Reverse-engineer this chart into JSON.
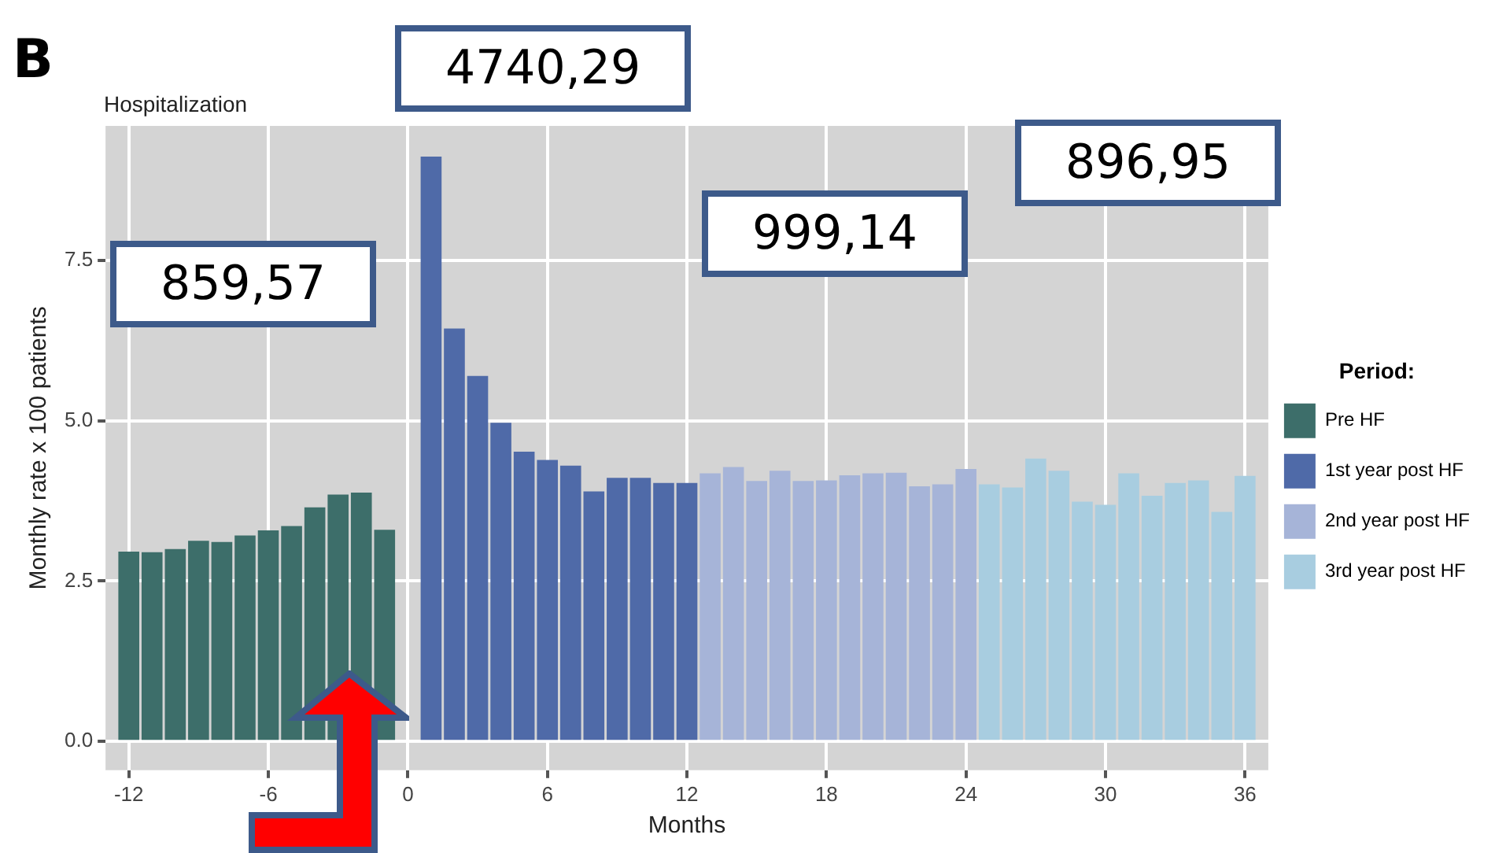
{
  "chart_data": {
    "type": "bar",
    "title": "Hospitalization",
    "xlabel": "Months",
    "ylabel": "Monthly rate x 100 patients",
    "legend_title": "Period:",
    "legend": "right",
    "grid": true,
    "xlim": [
      -13,
      37
    ],
    "xticks": [
      -12,
      -6,
      0,
      6,
      12,
      18,
      24,
      30,
      36
    ],
    "ylim": [
      -0.45,
      9.6
    ],
    "yticks": [
      {
        "value": 0,
        "label": "0.0"
      },
      {
        "value": 2.5,
        "label": "2.5"
      },
      {
        "value": 5,
        "label": "5.0"
      },
      {
        "value": 7.5,
        "label": "7.5"
      }
    ],
    "annotations": [
      "B",
      "4740,29",
      "859,57",
      "999,14",
      "896,95"
    ],
    "series": [
      {
        "name": "Pre HF",
        "color": "#3d6e6a",
        "x": [
          -12,
          -11,
          -10,
          -9,
          -8,
          -7,
          -6,
          -5,
          -4,
          -3,
          -2,
          -1
        ],
        "values": [
          2.96,
          2.95,
          3.0,
          3.13,
          3.11,
          3.21,
          3.29,
          3.36,
          3.65,
          3.85,
          3.88,
          3.3
        ]
      },
      {
        "name": "1st year post HF",
        "color": "#4f6aa8",
        "x": [
          1,
          2,
          3,
          4,
          5,
          6,
          7,
          8,
          9,
          10,
          11,
          12
        ],
        "values": [
          9.12,
          6.44,
          5.7,
          4.97,
          4.52,
          4.39,
          4.3,
          3.9,
          4.11,
          4.11,
          4.03,
          4.03
        ]
      },
      {
        "name": "2nd year post HF",
        "color": "#a6b4d8",
        "x": [
          13,
          14,
          15,
          16,
          17,
          18,
          19,
          20,
          21,
          22,
          23,
          24
        ],
        "values": [
          4.18,
          4.28,
          4.06,
          4.22,
          4.06,
          4.07,
          4.15,
          4.18,
          4.19,
          3.98,
          4.01,
          4.25
        ]
      },
      {
        "name": "3rd year post HF",
        "color": "#a8cde0",
        "x": [
          25,
          26,
          27,
          28,
          29,
          30,
          31,
          32,
          33,
          34,
          35,
          36
        ],
        "values": [
          4.01,
          3.96,
          4.41,
          4.22,
          3.74,
          3.69,
          4.18,
          3.83,
          4.03,
          4.07,
          3.58,
          4.14
        ]
      }
    ]
  }
}
